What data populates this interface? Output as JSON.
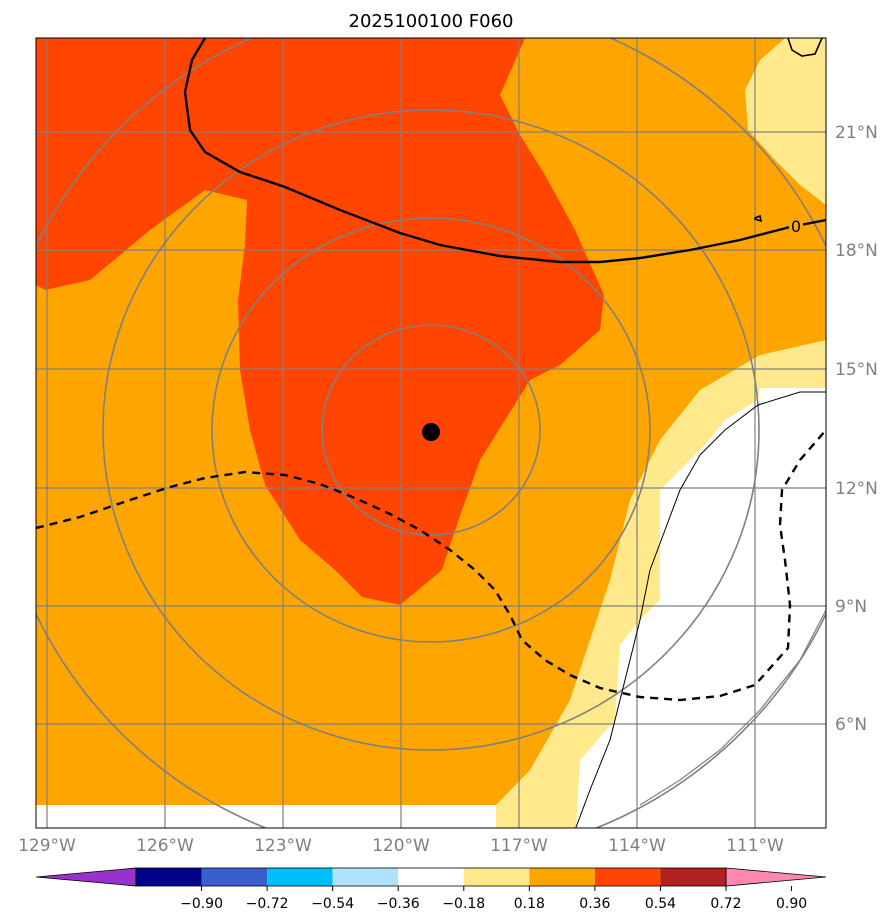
{
  "title": "2025100100 F060",
  "map": {
    "lon_ticks": [
      "129°W",
      "126°W",
      "123°W",
      "120°W",
      "117°W",
      "114°W",
      "111°W"
    ],
    "lat_ticks": [
      "21°N",
      "18°N",
      "15°N",
      "12°N",
      "9°N",
      "6°N"
    ],
    "contour_labels": [
      "0"
    ],
    "storm_center": {
      "lon": "119.2°W",
      "lat": "13.4°N"
    },
    "fill_colors": {
      "white": "#ffffff",
      "light_yellow": "#ffe98a",
      "orange": "#ffa500",
      "red_orange": "#ff4500"
    },
    "grid_color": "#808080",
    "range_rings": 4
  },
  "colorbar": {
    "tick_labels": [
      "−0.90",
      "−0.72",
      "−0.54",
      "−0.36",
      "−0.18",
      "0.18",
      "0.36",
      "0.54",
      "0.72",
      "0.90"
    ],
    "colors": [
      "#9932cc",
      "#00008b",
      "#3a5fcd",
      "#00bfff",
      "#b0e2ff",
      "#ffffff",
      "#ffe98a",
      "#ffa500",
      "#ff4500",
      "#b22222",
      "#ff88b0"
    ]
  }
}
